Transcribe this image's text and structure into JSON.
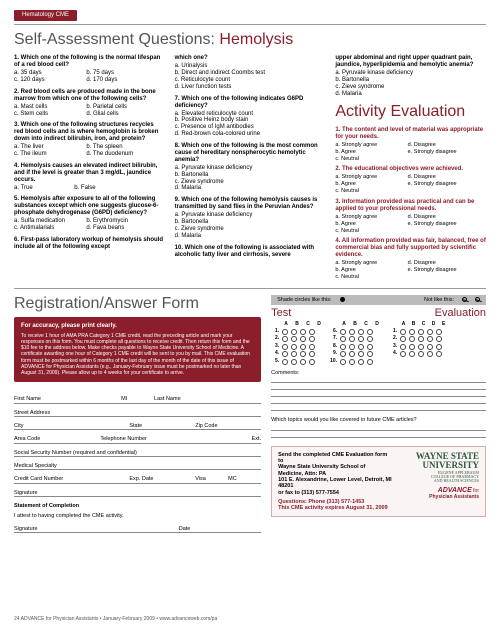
{
  "header": {
    "tab": "Hematology CME"
  },
  "titles": {
    "main_prefix": "Self-Assessment Questions: ",
    "main_accent": "Hemolysis",
    "activity": "Activity Evaluation",
    "registration": "Registration/Answer Form"
  },
  "questions": {
    "col1": [
      {
        "q": "1. Which one of the following is the normal lifespan of a red blood cell?",
        "opts": [
          "a. 35 days",
          "b. 75 days",
          "c. 120 days",
          "d. 170 days"
        ]
      },
      {
        "q": "2. Red blood cells are produced made in the bone marrow from which one of the following cells?",
        "opts": [
          "a. Mast cells",
          "b. Parietal cells",
          "c. Stem cells",
          "d. Glial cells"
        ]
      },
      {
        "q": "3. Which one of the following structures recycles red blood cells and is where hemoglobin is broken down into indirect bilirubin, iron, and protein?",
        "opts": [
          "a. The liver",
          "b. The spleen",
          "c. The ileum",
          "d. The duodenum"
        ]
      },
      {
        "q": "4. Hemolysis causes an elevated indirect bilirubin, and if the level is greater than 3 mg/dL, jaundice occurs.",
        "opts": [
          "a. True",
          "b. False"
        ],
        "tf": true
      },
      {
        "q": "5. Hemolysis after exposure to all of the following substances except which one suggests glucose-6-phosphate dehydrogenase (G6PD) deficiency?",
        "opts": [
          "a. Sulfa medication",
          "b. Erythromycin",
          "c. Antimalarials",
          "d. Fava beans"
        ]
      },
      {
        "q": "6. First-pass laboratory workup of hemolysis should include all of the following except",
        "opts": []
      }
    ],
    "col2": [
      {
        "q": "which one?",
        "opts": [
          "a. Urinalysis",
          "b. Direct and indirect Coombs test",
          "c. Reticulocyte count",
          "d. Liver function tests"
        ],
        "single": true
      },
      {
        "q": "7. Which one of the following indicates G6PD deficiency?",
        "opts": [
          "a. Elevated reticulocyte count",
          "b. Positive Heinz body stain",
          "c. Presence of IgM antibodies",
          "d. Red-brown cola-colored urine"
        ],
        "single": true
      },
      {
        "q": "8. Which one of the following is the most common cause of hereditary nonspherocytic hemolytic anemia?",
        "opts": [
          "a. Pyruvate kinase deficiency",
          "b. Bartonella",
          "c. Zieve syndrome",
          "d. Malaria"
        ],
        "single": true
      },
      {
        "q": "9. Which one of the following hemolysis causes is transmitted by sand flies in the Peruvian Andes?",
        "opts": [
          "a. Pyruvate kinase deficiency",
          "b. Bartonella",
          "c. Zieve syndrome",
          "d. Malaria"
        ],
        "single": true
      },
      {
        "q": "10. Which one of the following is associated with alcoholic fatty liver and cirrhosis, severe",
        "opts": []
      }
    ],
    "col3_intro": "upper abdominal and right upper quadrant pain, jaundice, hyperlipidemia and hemolytic anemia?",
    "col3_opts": [
      "a. Pyruvate kinase deficiency",
      "b. Bartonella",
      "c. Zieve syndrome",
      "d. Malaria"
    ]
  },
  "evaluation": [
    {
      "q": "1. The content and level of material was appropriate for your needs.",
      "opts": [
        "a. Strongly agree",
        "d. Disagree",
        "b. Agree",
        "e. Strongly disagree",
        "c. Neutral",
        ""
      ]
    },
    {
      "q": "2. The educational objectives were achieved.",
      "opts": [
        "a. Strongly agree",
        "d. Disagree",
        "b. Agree",
        "e. Strongly disagree",
        "c. Neutral",
        ""
      ]
    },
    {
      "q": "3. Information provided was practical and can be applied to your professional needs.",
      "opts": [
        "a. Strongly agree",
        "d. Disagree",
        "b. Agree",
        "e. Strongly disagree",
        "c. Neutral",
        ""
      ]
    },
    {
      "q": "4. All information provided was fair, balanced, free of commercial bias and fully supported by scientific evidence.",
      "opts": [
        "a. Strongly agree",
        "d. Disagree",
        "b. Agree",
        "e. Strongly disagree",
        "c. Neutral",
        ""
      ]
    }
  ],
  "redbox": {
    "head": "For accuracy, please print clearly.",
    "body": "To receive 1 hour of AMA PRA Category 1 CME credit, read the preceding article and mark your responses on this form. You must complete all questions to receive credit. Then return this form and the $10 fee to the address below. Make checks payable to Wayne State University School of Medicine. A certificate awarding one hour of Category 1 CME credit will be sent to you by mail. This CME evaluation form must be postmarked within 6 months of the last day of the month of the date of this issue of ADVANCE for Physician Assistants (e.g., January-February issue must be postmarked no later than August 31, 2009). Please allow up to 4 weeks for your certificate to arrive."
  },
  "form": {
    "l1": [
      "First Name",
      "MI",
      "Last Name"
    ],
    "l2": [
      "Street Address"
    ],
    "l3": [
      "City",
      "State",
      "Zip Code"
    ],
    "l4": [
      "Area Code",
      "Telephone Number",
      "Ext."
    ],
    "l5": [
      "Social Security Number (required and confidential)"
    ],
    "l6": [
      "Medical Specialty"
    ],
    "l7": [
      "Credit Card Number",
      "Exp. Date",
      "Visa",
      "MC"
    ],
    "l8": [
      "Signature"
    ],
    "stmt": "Statement of Completion",
    "attest": "I attest to having completed the CME activity.",
    "l9": [
      "Signature",
      "Date"
    ]
  },
  "shade": {
    "like": "Shade circles like this:",
    "not": "Not like this:"
  },
  "answer_sheet": {
    "test": "Test",
    "eval": "Evaluation",
    "abcd": [
      "A",
      "B",
      "C",
      "D"
    ],
    "abcde": [
      "A",
      "B",
      "C",
      "D",
      "E"
    ],
    "left_nums": [
      "1.",
      "2.",
      "3.",
      "4.",
      "5."
    ],
    "mid_nums": [
      "6.",
      "7.",
      "8.",
      "9.",
      "10."
    ],
    "right_nums": [
      "1.",
      "2.",
      "3.",
      "4."
    ]
  },
  "comments": {
    "label": "Comments:",
    "topics": "Which topics would you like covered in future CME articles?"
  },
  "sendbox": {
    "l1": "Send the completed CME Evaluation form to",
    "l2": "Wayne State University School of Medicine, Attn: PA",
    "l3": "101 E. Alexandrine, Lower Level, Detroit, MI 48201",
    "l4": "or fax to (313) 577-7554",
    "ql": "Questions: Phone (313) 577-1453",
    "exp": "This CME activity expires August 31, 2009",
    "ws1": "WAYNE STATE",
    "ws2": "UNIVERSITY",
    "ws3": "EUGENE APPLEBAUM\nCOLLEGE OF PHARMACY\nAND HEALTH SCIENCES",
    "adv1": "ADVANCE",
    "adv2": "Physician Assistants"
  },
  "footer": "24  ADVANCE for Physician Assistants • January-February 2009 • www.advanceweb.com/pa",
  "colors": {
    "accent": "#8a1e2a"
  }
}
